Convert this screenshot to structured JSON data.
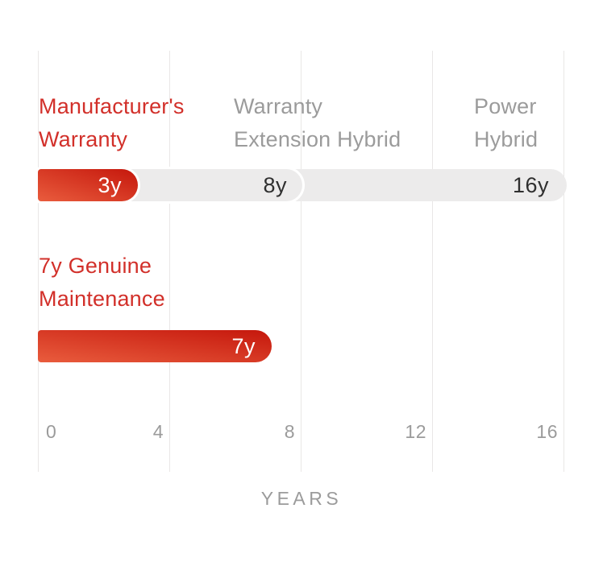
{
  "chart_data": {
    "type": "bar",
    "orientation": "horizontal",
    "title": "",
    "xlabel": "YEARS",
    "ylabel": "",
    "xlim": [
      0,
      16
    ],
    "x_ticks": [
      0,
      4,
      8,
      12,
      16
    ],
    "tick_labels": [
      "0",
      "4",
      "8",
      "12",
      "16"
    ],
    "grid": "vertical gridlines at each x tick",
    "legend": "none",
    "rows": [
      {
        "name": "warranty timeline",
        "segments": [
          {
            "label": "Manufacturer's Warranty",
            "label_lines": [
              "Manufacturer's",
              "Warranty"
            ],
            "end_year": 3,
            "value_label": "3y",
            "style": "red-gradient"
          },
          {
            "label": "Warranty Extension Hybrid",
            "label_lines": [
              "Warranty",
              "Extension Hybrid"
            ],
            "end_year": 8,
            "value_label": "8y",
            "style": "light-gray"
          },
          {
            "label": "Power Hybrid",
            "label_lines": [
              "Power",
              "Hybrid"
            ],
            "end_year": 16,
            "value_label": "16y",
            "style": "light-gray"
          }
        ]
      },
      {
        "name": "maintenance timeline",
        "segments": [
          {
            "label": "7y Genuine Maintenance",
            "label_lines": [
              "7y Genuine",
              "Maintenance"
            ],
            "end_year": 7,
            "value_label": "7y",
            "style": "red-gradient"
          }
        ]
      }
    ]
  },
  "colors": {
    "background": "#FFFFFF",
    "red_text": "#D2302A",
    "gray_text": "#9B9B9B",
    "tick_text": "#9B9B9B",
    "pill_gray": "#ECEBEB",
    "pill_dark_text": "#2F2F2F",
    "red_gradient_start": "#C5170C",
    "red_gradient_end": "#E95C3D",
    "gridline": "#E9E7E6",
    "pill_value_white": "#FFFFFF"
  }
}
